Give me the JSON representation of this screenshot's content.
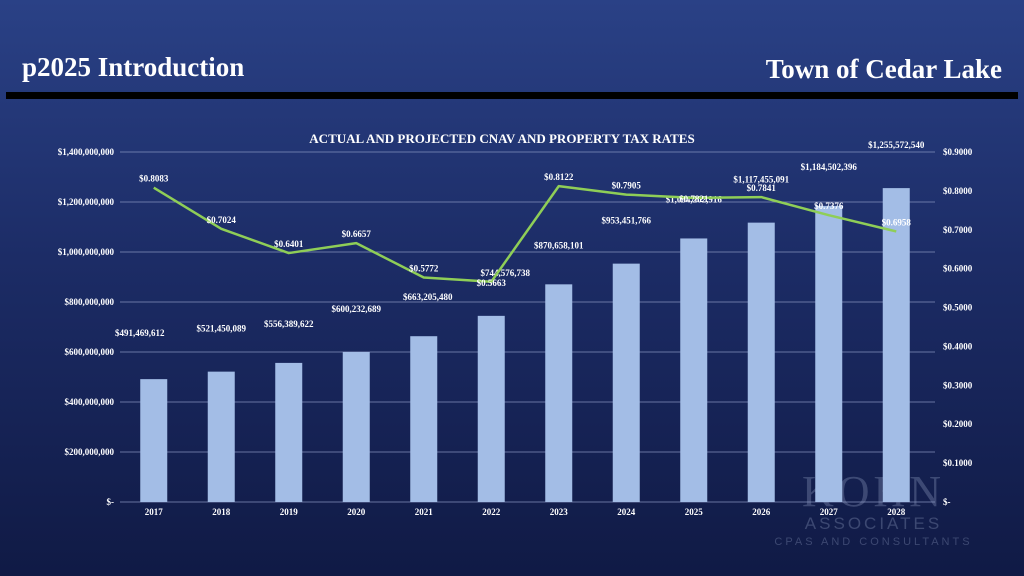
{
  "header": {
    "title": "p2025 Introduction",
    "organization": "Town of Cedar Lake"
  },
  "watermark": {
    "name": "KOHN",
    "line2": "ASSOCIATES",
    "line3": "CPAS AND CONSULTANTS"
  },
  "colors": {
    "bar": "#a3bde6",
    "line": "#8fce57",
    "grid": "#8b97c2",
    "text": "#ffffff"
  },
  "chart_data": {
    "type": "bar+line",
    "title": "ACTUAL AND PROJECTED CNAV AND PROPERTY TAX RATES",
    "categories": [
      "2017",
      "2018",
      "2019",
      "2020",
      "2021",
      "2022",
      "2023",
      "2024",
      "2025",
      "2026",
      "2027",
      "2028"
    ],
    "series": [
      {
        "name": "CNAV",
        "type": "bar",
        "axis": "left",
        "values": [
          491469612,
          521450089,
          556389622,
          600232689,
          663205480,
          744576738,
          870658101,
          953451766,
          1054202916,
          1117455091,
          1184502396,
          1255572540
        ],
        "labels": [
          "$491,469,612",
          "$521,450,089",
          "$556,389,622",
          "$600,232,689",
          "$663,205,480",
          "$744,576,738",
          "$870,658,101",
          "$953,451,766",
          "$1,054,202,916",
          "$1,117,455,091",
          "$1,184,502,396",
          "$1,255,572,540"
        ]
      },
      {
        "name": "Property Tax Rate",
        "type": "line",
        "axis": "right",
        "values": [
          0.8083,
          0.7024,
          0.6401,
          0.6657,
          0.5772,
          0.5663,
          0.8122,
          0.7905,
          0.7821,
          0.7841,
          0.7376,
          0.6958
        ],
        "labels": [
          "$0.8083",
          "$0.7024",
          "$0.6401",
          "$0.6657",
          "$0.5772",
          "$0.5663",
          "$0.8122",
          "$0.7905",
          "$0.7821",
          "$0.7841",
          "$0.7376",
          "$0.6958"
        ]
      }
    ],
    "y_left": {
      "min": 0,
      "max": 1400000000,
      "ticks": [
        "$-",
        "$200,000,000",
        "$400,000,000",
        "$600,000,000",
        "$800,000,000",
        "$1,000,000,000",
        "$1,200,000,000",
        "$1,400,000,000"
      ]
    },
    "y_right": {
      "min": 0,
      "max": 0.9,
      "ticks": [
        "$-",
        "$0.1000",
        "$0.2000",
        "$0.3000",
        "$0.4000",
        "$0.5000",
        "$0.6000",
        "$0.7000",
        "$0.8000",
        "$0.9000"
      ]
    },
    "grid": true
  }
}
